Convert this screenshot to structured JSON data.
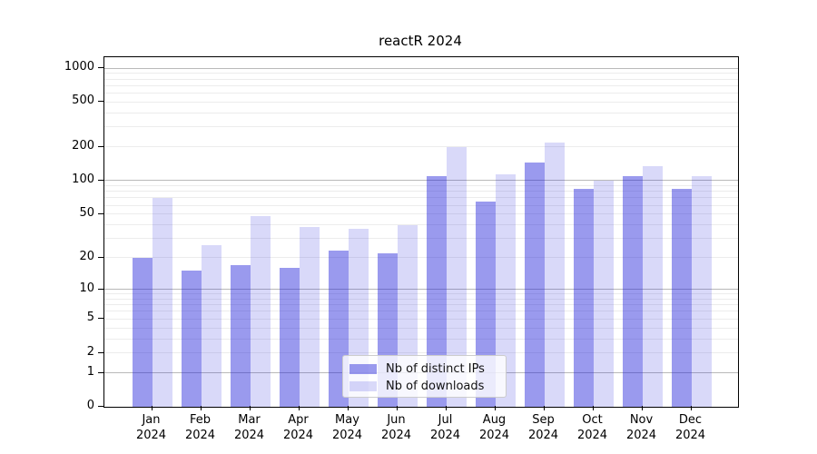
{
  "chart_data": {
    "type": "bar",
    "title": "reactR 2024",
    "categories": [
      "Jan",
      "Feb",
      "Mar",
      "Apr",
      "May",
      "Jun",
      "Jul",
      "Aug",
      "Sep",
      "Oct",
      "Nov",
      "Dec"
    ],
    "year_label": "2024",
    "series": [
      {
        "name": "Nb of distinct IPs",
        "color": "rgba(30,30,218,0.45)",
        "values": [
          20,
          15,
          17,
          16,
          23,
          22,
          110,
          65,
          146,
          85,
          110,
          84
        ]
      },
      {
        "name": "Nb of downloads",
        "color": "rgba(30,30,218,0.17)",
        "values": [
          70,
          26,
          48,
          38,
          37,
          40,
          200,
          113,
          220,
          100,
          135,
          110
        ]
      }
    ],
    "y_scale": "log1p",
    "ylim": [
      0,
      1250
    ],
    "y_ticks": [
      0,
      1,
      2,
      5,
      10,
      20,
      50,
      100,
      200,
      500,
      1000
    ],
    "grid_major": [
      1,
      10,
      100,
      1000
    ],
    "grid_minor": [
      2,
      3,
      4,
      5,
      6,
      7,
      8,
      9,
      20,
      30,
      40,
      50,
      60,
      70,
      80,
      90,
      200,
      300,
      400,
      500,
      600,
      700,
      800,
      900
    ],
    "grid_major_color": "#b9b9b9",
    "grid_minor_color": "#ececec",
    "legend_position": "lower center",
    "xlabel": "",
    "ylabel": ""
  }
}
